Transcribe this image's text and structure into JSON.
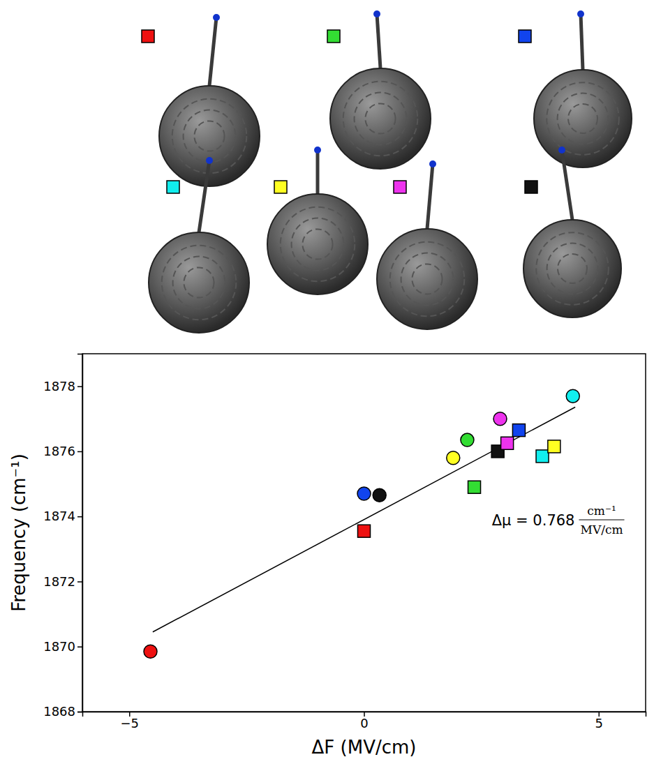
{
  "chart_data": {
    "type": "scatter",
    "x_label": "ΔF (MV/cm)",
    "y_label": "Frequency (cm⁻¹)",
    "xlim": [
      -6,
      6
    ],
    "xticks": [
      {
        "value": -5,
        "label": "−5"
      },
      0,
      5
    ],
    "ylim": [
      1868,
      1879
    ],
    "yticks": [
      1868,
      1870,
      1872,
      1874,
      1876,
      1878
    ],
    "grid": false,
    "series": [
      {
        "type": "scatter",
        "marker": "circle",
        "colors": [
          "#ee1111",
          "#1144ee",
          "#111111",
          "#ffff22",
          "#33dd33",
          "#ee33ee",
          "#11eeee"
        ],
        "x": [
          -4.55,
          0.0,
          0.33,
          1.9,
          2.2,
          2.9,
          4.45
        ],
        "values": [
          1869.85,
          1874.7,
          1874.65,
          1875.8,
          1876.35,
          1877.0,
          1877.7
        ]
      },
      {
        "type": "scatter",
        "marker": "square",
        "colors": [
          "#ee1111",
          "#33dd33",
          "#111111",
          "#ee33ee",
          "#1144ee",
          "#11eeee",
          "#ffff22"
        ],
        "x": [
          0.0,
          2.35,
          2.85,
          3.05,
          3.3,
          3.8,
          4.05
        ],
        "values": [
          1873.55,
          1874.9,
          1876.0,
          1876.25,
          1876.65,
          1875.85,
          1876.15
        ]
      },
      {
        "type": "line",
        "color": "#000000",
        "x": [
          -4.5,
          4.5
        ],
        "values": [
          1870.45,
          1877.36
        ]
      }
    ],
    "annotation": {
      "text": "Δμ = 0.768",
      "numerator": "cm⁻¹",
      "denominator": "MV/cm"
    }
  },
  "structures": {
    "colors": [
      "#ee1111",
      "#33dd33",
      "#1144ee",
      "#11eeee",
      "#ffff22",
      "#ee33ee",
      "#111111"
    ]
  }
}
